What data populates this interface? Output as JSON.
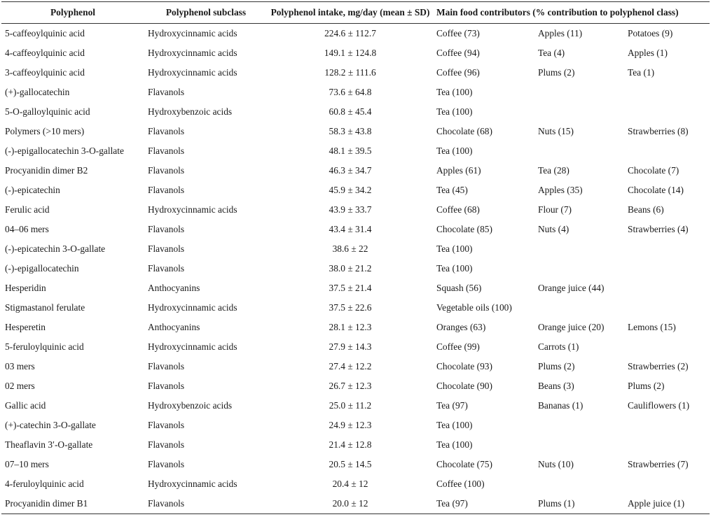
{
  "table": {
    "headers": {
      "polyphenol": "Polyphenol",
      "subclass": "Polyphenol subclass",
      "intake": "Polyphenol intake, mg/day (mean ± SD)",
      "contributors": "Main food contributors (% contribution to polyphenol class)"
    },
    "rows": [
      {
        "name": "5-caffeoylquinic acid",
        "subclass": "Hydroxycinnamic acids",
        "intake": "224.6 ± 112.7",
        "f1": "Coffee (73)",
        "f2": "Apples (11)",
        "f3": "Potatoes (9)"
      },
      {
        "name": "4-caffeoylquinic acid",
        "subclass": "Hydroxycinnamic acids",
        "intake": "149.1 ± 124.8",
        "f1": "Coffee (94)",
        "f2": "Tea (4)",
        "f3": "Apples (1)"
      },
      {
        "name": "3-caffeoylquinic acid",
        "subclass": "Hydroxycinnamic acids",
        "intake": "128.2 ± 111.6",
        "f1": "Coffee (96)",
        "f2": "Plums (2)",
        "f3": "Tea (1)"
      },
      {
        "name": "(+)-gallocatechin",
        "subclass": "Flavanols",
        "intake": "73.6 ± 64.8",
        "f1": "Tea (100)",
        "f2": "",
        "f3": ""
      },
      {
        "name": "5-O-galloylquinic acid",
        "subclass": "Hydroxybenzoic acids",
        "intake": "60.8 ± 45.4",
        "f1": "Tea (100)",
        "f2": "",
        "f3": ""
      },
      {
        "name": "Polymers (>10 mers)",
        "subclass": "Flavanols",
        "intake": "58.3 ± 43.8",
        "f1": "Chocolate (68)",
        "f2": "Nuts (15)",
        "f3": "Strawberries (8)"
      },
      {
        "name": "(-)-epigallocatechin 3-O-gallate",
        "subclass": "Flavanols",
        "intake": "48.1 ± 39.5",
        "f1": "Tea (100)",
        "f2": "",
        "f3": ""
      },
      {
        "name": "Procyanidin dimer B2",
        "subclass": "Flavanols",
        "intake": "46.3 ± 34.7",
        "f1": "Apples (61)",
        "f2": "Tea (28)",
        "f3": "Chocolate (7)"
      },
      {
        "name": "(-)-epicatechin",
        "subclass": "Flavanols",
        "intake": "45.9 ± 34.2",
        "f1": "Tea (45)",
        "f2": "Apples (35)",
        "f3": "Chocolate (14)"
      },
      {
        "name": "Ferulic acid",
        "subclass": "Hydroxycinnamic acids",
        "intake": "43.9 ± 33.7",
        "f1": "Coffee (68)",
        "f2": "Flour (7)",
        "f3": "Beans (6)"
      },
      {
        "name": "04–06 mers",
        "subclass": "Flavanols",
        "intake": "43.4 ± 31.4",
        "f1": "Chocolate (85)",
        "f2": "Nuts (4)",
        "f3": "Strawberries (4)"
      },
      {
        "name": "(-)-epicatechin 3-O-gallate",
        "subclass": "Flavanols",
        "intake": "38.6 ± 22",
        "f1": "Tea (100)",
        "f2": "",
        "f3": ""
      },
      {
        "name": "(-)-epigallocatechin",
        "subclass": "Flavanols",
        "intake": "38.0 ± 21.2",
        "f1": "Tea (100)",
        "f2": "",
        "f3": ""
      },
      {
        "name": "Hesperidin",
        "subclass": "Anthocyanins",
        "intake": "37.5 ± 21.4",
        "f1": "Squash (56)",
        "f2": "Orange juice (44)",
        "f3": ""
      },
      {
        "name": "Stigmastanol ferulate",
        "subclass": "Hydroxycinnamic acids",
        "intake": "37.5 ± 22.6",
        "f1": "Vegetable oils (100)",
        "f2": "",
        "f3": ""
      },
      {
        "name": "Hesperetin",
        "subclass": "Anthocyanins",
        "intake": "28.1 ± 12.3",
        "f1": "Oranges (63)",
        "f2": "Orange juice (20)",
        "f3": "Lemons (15)"
      },
      {
        "name": "5-feruloylquinic acid",
        "subclass": "Hydroxycinnamic acids",
        "intake": "27.9 ± 14.3",
        "f1": "Coffee (99)",
        "f2": "Carrots (1)",
        "f3": ""
      },
      {
        "name": "03 mers",
        "subclass": "Flavanols",
        "intake": "27.4 ± 12.2",
        "f1": "Chocolate (93)",
        "f2": "Plums (2)",
        "f3": "Strawberries (2)"
      },
      {
        "name": "02 mers",
        "subclass": "Flavanols",
        "intake": "26.7 ± 12.3",
        "f1": "Chocolate (90)",
        "f2": "Beans (3)",
        "f3": "Plums (2)"
      },
      {
        "name": "Gallic acid",
        "subclass": "Hydroxybenzoic acids",
        "intake": "25.0 ± 11.2",
        "f1": "Tea (97)",
        "f2": "Bananas (1)",
        "f3": "Cauliflowers (1)"
      },
      {
        "name": "(+)-catechin 3-O-gallate",
        "subclass": "Flavanols",
        "intake": "24.9 ± 12.3",
        "f1": "Tea (100)",
        "f2": "",
        "f3": ""
      },
      {
        "name": "Theaflavin 3′-O-gallate",
        "subclass": "Flavanols",
        "intake": "21.4 ± 12.8",
        "f1": "Tea (100)",
        "f2": "",
        "f3": ""
      },
      {
        "name": "07–10 mers",
        "subclass": "Flavanols",
        "intake": "20.5 ± 14.5",
        "f1": "Chocolate (75)",
        "f2": "Nuts (10)",
        "f3": "Strawberries (7)"
      },
      {
        "name": "4-feruloylquinic acid",
        "subclass": "Hydroxycinnamic acids",
        "intake": "20.4 ± 12",
        "f1": "Coffee (100)",
        "f2": "",
        "f3": ""
      },
      {
        "name": "Procyanidin dimer B1",
        "subclass": "Flavanols",
        "intake": "20.0 ± 12",
        "f1": "Tea (97)",
        "f2": "Plums (1)",
        "f3": "Apple juice (1)"
      }
    ]
  }
}
